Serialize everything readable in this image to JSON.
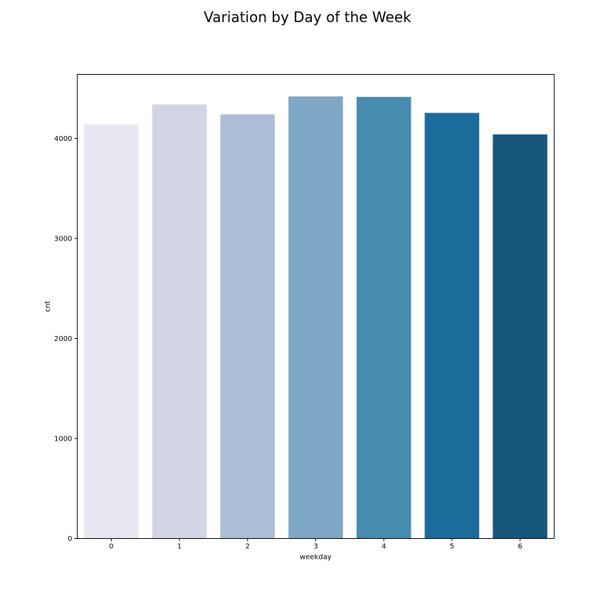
{
  "chart_data": {
    "type": "bar",
    "title": "Variation by Day of the Week",
    "xlabel": "weekday",
    "ylabel": "cnt",
    "categories": [
      "0",
      "1",
      "2",
      "3",
      "4",
      "5",
      "6"
    ],
    "values": [
      4140,
      4340,
      4240,
      4420,
      4415,
      4255,
      4040
    ],
    "colors": [
      "#e9e7f2",
      "#d2d5e4",
      "#acbed5",
      "#7ea7c5",
      "#478db0",
      "#1c6c9b",
      "#17567c"
    ],
    "yticks": [
      0,
      1000,
      2000,
      3000,
      4000
    ],
    "ytick_labels": [
      "0",
      "1000",
      "2000",
      "3000",
      "4000"
    ],
    "ylim": [
      0,
      4640
    ],
    "grid": false,
    "legend": false
  }
}
